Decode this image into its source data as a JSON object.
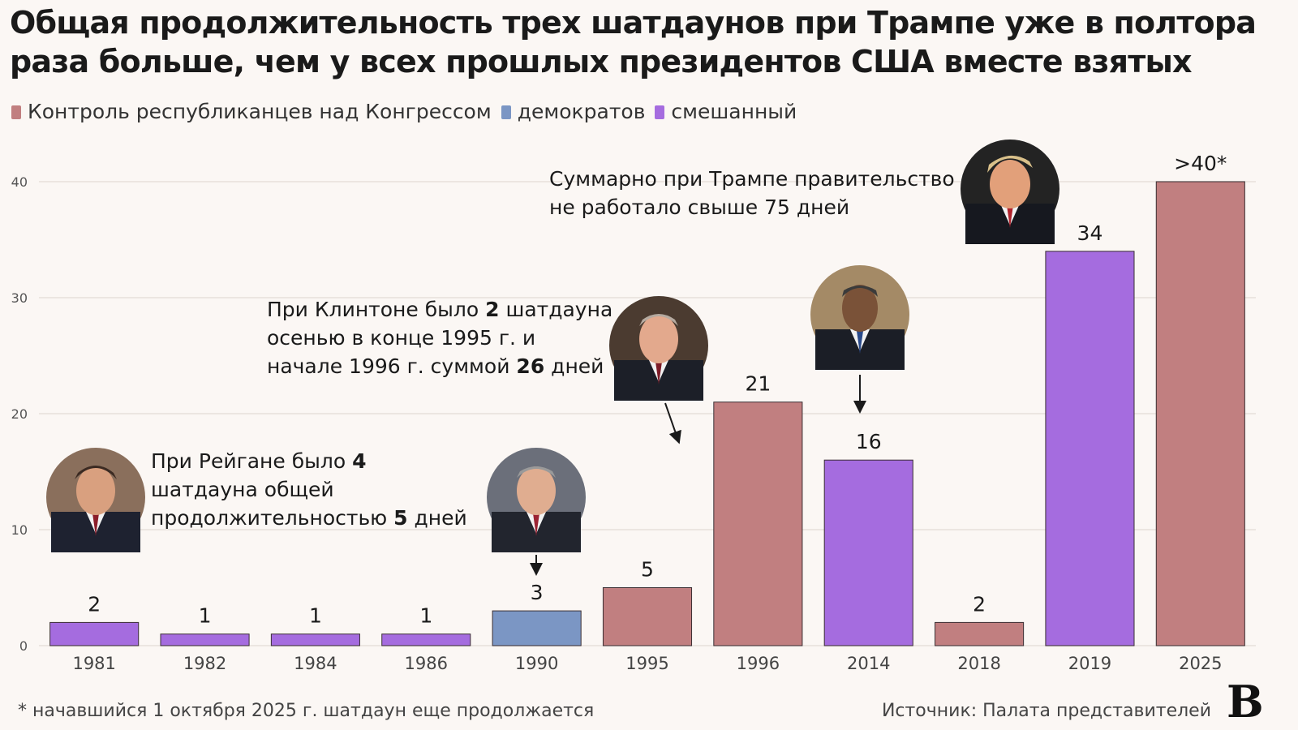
{
  "title": "Общая продолжительность трех шатдаунов при Трампе уже в полтора раза больше, чем у всех прошлых президентов США вместе взятых",
  "legend": {
    "items": [
      {
        "label": "Контроль республиканцев над Конгрессом",
        "color": "#c17f80"
      },
      {
        "label": "демократов",
        "color": "#7b96c4"
      },
      {
        "label": "смешанный",
        "color": "#a56cdf"
      }
    ]
  },
  "chart_data": {
    "type": "bar",
    "categories": [
      "1981",
      "1982",
      "1984",
      "1986",
      "1990",
      "1995",
      "1996",
      "2014",
      "2018",
      "2019",
      "2025"
    ],
    "values": [
      2,
      1,
      1,
      1,
      3,
      5,
      21,
      16,
      2,
      34,
      40
    ],
    "value_labels": [
      "2",
      "1",
      "1",
      "1",
      "3",
      "5",
      "21",
      "16",
      "2",
      "34",
      ">40*"
    ],
    "control": [
      "mixed",
      "mixed",
      "mixed",
      "mixed",
      "dem",
      "rep",
      "rep",
      "mixed",
      "rep",
      "mixed",
      "rep"
    ],
    "colors": {
      "rep": "#c17f80",
      "dem": "#7b96c4",
      "mixed": "#a56cdf"
    },
    "ylim": [
      0,
      40
    ],
    "yticks": [
      0,
      10,
      20,
      30,
      40
    ],
    "grid": true,
    "xlabel": "",
    "ylabel": ""
  },
  "annotations": {
    "reagan": {
      "pre": "При Рейгане было ",
      "b1": "4",
      "mid": " шатдауна общей продолжительностью ",
      "b2": "5",
      "post": " дней"
    },
    "clinton": {
      "pre": "При Клинтоне было ",
      "b1": "2",
      "mid": " шатдауна осенью в конце 1995 г. и начале 1996 г. суммой ",
      "b2": "26",
      "post": " дней"
    },
    "trump": "Суммарно при Трампе правительство не работало свыше 75 дней"
  },
  "portraits": [
    "Рейган",
    "Буш",
    "Клинтон",
    "Обама",
    "Трамп"
  ],
  "footnote": "* начавшийся 1 октября 2025 г. шатдаун еще продолжается",
  "source": "Источник: Палата представителей",
  "logo": "В"
}
